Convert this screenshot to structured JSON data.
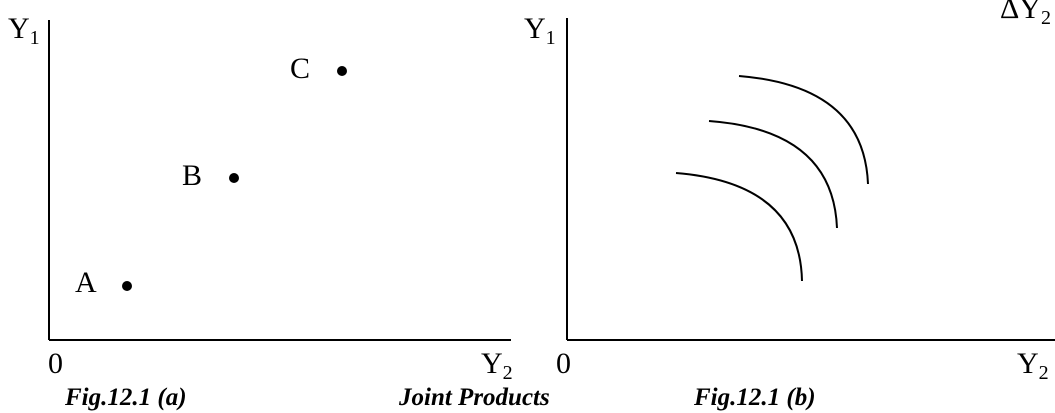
{
  "panel_a": {
    "y_label": "Y",
    "y_sub": "1",
    "x_label": "Y",
    "x_sub": "2",
    "origin": "0",
    "points": [
      {
        "label": "A"
      },
      {
        "label": "B"
      },
      {
        "label": "C"
      }
    ],
    "caption": "Fig.12.1 (a)"
  },
  "panel_b": {
    "y_label": "Y",
    "y_sub": "1",
    "x_label": "Y",
    "x_sub": "2",
    "origin": "0",
    "curves_count": 3,
    "caption": "Fig.12.1 (b)",
    "corner_fragment": "ΔY",
    "corner_sub": "2"
  },
  "center_caption": "Joint Products",
  "colors": {
    "ink": "#000000",
    "background": "#ffffff"
  }
}
